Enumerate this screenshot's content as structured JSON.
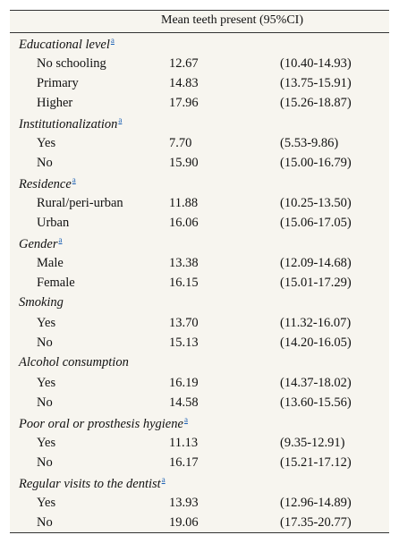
{
  "header": {
    "column_label": "Mean teeth present (95%CI)"
  },
  "groups": [
    {
      "label": "Educational level",
      "footnote": "a",
      "rows": [
        {
          "label": "No schooling",
          "mean": "12.67",
          "ci": "(10.40-14.93)"
        },
        {
          "label": "Primary",
          "mean": "14.83",
          "ci": "(13.75-15.91)"
        },
        {
          "label": "Higher",
          "mean": "17.96",
          "ci": "(15.26-18.87)"
        }
      ]
    },
    {
      "label": "Institutionalization",
      "footnote": "a",
      "rows": [
        {
          "label": "Yes",
          "mean": "7.70",
          "ci": "(5.53-9.86)"
        },
        {
          "label": "No",
          "mean": "15.90",
          "ci": "(15.00-16.79)"
        }
      ]
    },
    {
      "label": "Residence",
      "footnote": "a",
      "rows": [
        {
          "label": "Rural/peri-urban",
          "mean": "11.88",
          "ci": "(10.25-13.50)"
        },
        {
          "label": "Urban",
          "mean": "16.06",
          "ci": "(15.06-17.05)"
        }
      ]
    },
    {
      "label": "Gender",
      "footnote": "a",
      "rows": [
        {
          "label": "Male",
          "mean": "13.38",
          "ci": "(12.09-14.68)"
        },
        {
          "label": "Female",
          "mean": "16.15",
          "ci": "(15.01-17.29)"
        }
      ]
    },
    {
      "label": "Smoking",
      "footnote": "",
      "rows": [
        {
          "label": "Yes",
          "mean": "13.70",
          "ci": "(11.32-16.07)"
        },
        {
          "label": "No",
          "mean": "15.13",
          "ci": "(14.20-16.05)"
        }
      ]
    },
    {
      "label": "Alcohol consumption",
      "footnote": "",
      "rows": [
        {
          "label": "Yes",
          "mean": "16.19",
          "ci": "(14.37-18.02)"
        },
        {
          "label": "No",
          "mean": "14.58",
          "ci": "(13.60-15.56)"
        }
      ]
    },
    {
      "label": "Poor oral or prosthesis hygiene",
      "footnote": "a",
      "rows": [
        {
          "label": "Yes",
          "mean": "11.13",
          "ci": "(9.35-12.91)"
        },
        {
          "label": "No",
          "mean": "16.17",
          "ci": "(15.21-17.12)"
        }
      ]
    },
    {
      "label": "Regular visits to the dentist",
      "footnote": "a",
      "rows": [
        {
          "label": "Yes",
          "mean": "13.93",
          "ci": "(12.96-14.89)"
        },
        {
          "label": "No",
          "mean": "19.06",
          "ci": "(17.35-20.77)"
        }
      ]
    }
  ]
}
